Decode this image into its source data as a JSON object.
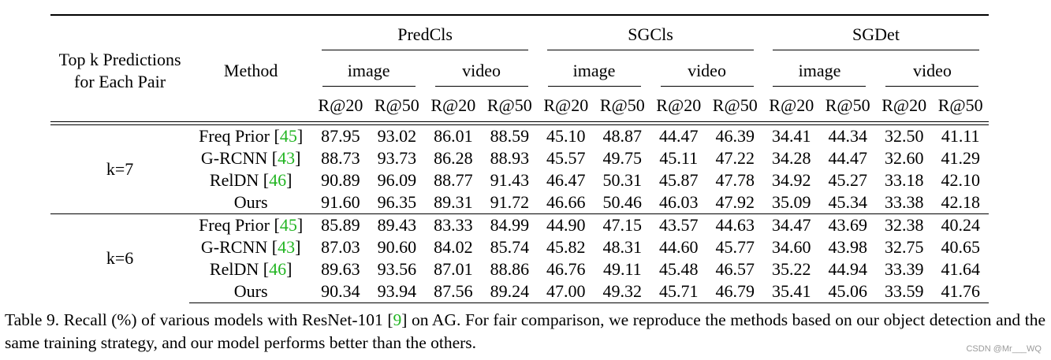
{
  "header": {
    "topk_line1": "Top k Predictions",
    "topk_line2": "for Each Pair",
    "method": "Method",
    "groups": [
      "PredCls",
      "SGCls",
      "SGDet"
    ],
    "splits": [
      "image",
      "video"
    ],
    "metrics": [
      "R@20",
      "R@50"
    ]
  },
  "blocks": [
    {
      "k_label": "k=7",
      "rows": [
        {
          "method": "Freq Prior ",
          "cite": "45",
          "bold": false,
          "values": [
            "87.95",
            "93.02",
            "86.01",
            "88.59",
            "45.10",
            "48.87",
            "44.47",
            "46.39",
            "34.41",
            "44.34",
            "32.50",
            "41.11"
          ]
        },
        {
          "method": "G-RCNN ",
          "cite": "43",
          "bold": false,
          "values": [
            "88.73",
            "93.73",
            "86.28",
            "88.93",
            "45.57",
            "49.75",
            "45.11",
            "47.22",
            "34.28",
            "44.47",
            "32.60",
            "41.29"
          ]
        },
        {
          "method": "RelDN ",
          "cite": "46",
          "bold": false,
          "values": [
            "90.89",
            "96.09",
            "88.77",
            "91.43",
            "46.47",
            "50.31",
            "45.87",
            "47.78",
            "34.92",
            "45.27",
            "33.18",
            "42.10"
          ]
        },
        {
          "method": "Ours",
          "cite": "",
          "bold": true,
          "values": [
            "91.60",
            "96.35",
            "89.31",
            "91.72",
            "46.66",
            "50.46",
            "46.03",
            "47.92",
            "35.09",
            "45.34",
            "33.38",
            "42.18"
          ]
        }
      ]
    },
    {
      "k_label": "k=6",
      "rows": [
        {
          "method": "Freq Prior ",
          "cite": "45",
          "bold": false,
          "values": [
            "85.89",
            "89.43",
            "83.33",
            "84.99",
            "44.90",
            "47.15",
            "43.57",
            "44.63",
            "34.47",
            "43.69",
            "32.38",
            "40.24"
          ]
        },
        {
          "method": "G-RCNN ",
          "cite": "43",
          "bold": false,
          "values": [
            "87.03",
            "90.60",
            "84.02",
            "85.74",
            "45.82",
            "48.31",
            "44.60",
            "45.77",
            "34.60",
            "43.98",
            "32.75",
            "40.65"
          ]
        },
        {
          "method": "RelDN ",
          "cite": "46",
          "bold": false,
          "values": [
            "89.63",
            "93.56",
            "87.01",
            "88.86",
            "46.76",
            "49.11",
            "45.48",
            "46.57",
            "35.22",
            "44.94",
            "33.39",
            "41.64"
          ]
        },
        {
          "method": "Ours",
          "cite": "",
          "bold": true,
          "values": [
            "90.34",
            "93.94",
            "87.56",
            "89.24",
            "47.00",
            "49.32",
            "45.71",
            "46.79",
            "35.41",
            "45.06",
            "33.59",
            "41.76"
          ]
        }
      ]
    }
  ],
  "caption": {
    "before_cite": "Table 9. Recall (%) of various models with ResNet-101 [",
    "cite": "9",
    "after_cite": "] on AG. For fair comparison, we reproduce the methods based on our object detection and the same training strategy, and our model performs better than the others."
  },
  "watermark": "CSDN @Mr___WQ",
  "colors": {
    "citation": "#22b522",
    "text": "#000000"
  }
}
